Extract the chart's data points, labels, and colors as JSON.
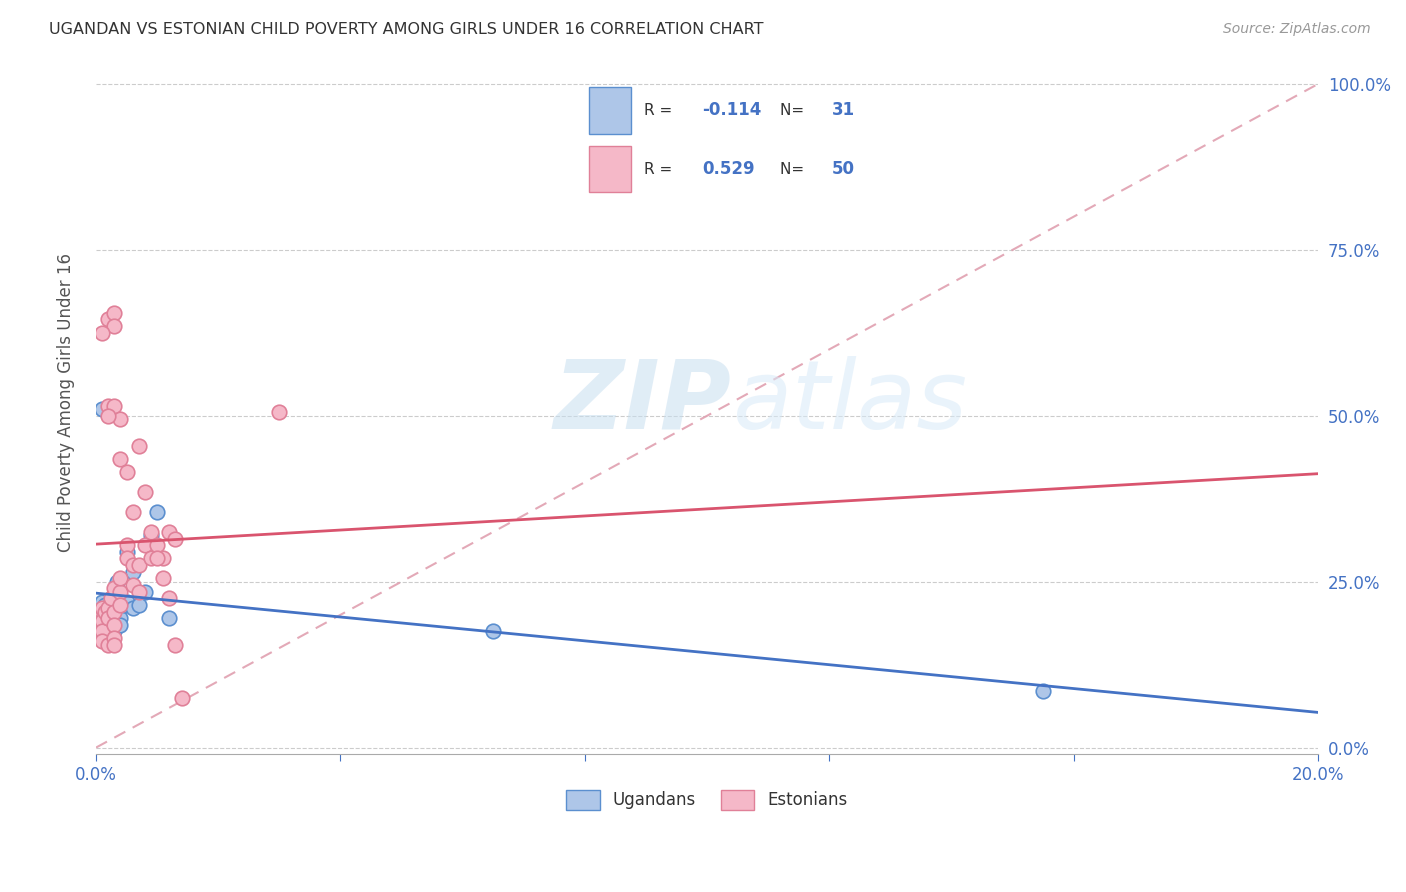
{
  "title": "UGANDAN VS ESTONIAN CHILD POVERTY AMONG GIRLS UNDER 16 CORRELATION CHART",
  "source": "Source: ZipAtlas.com",
  "ylabel": "Child Poverty Among Girls Under 16",
  "ytick_labels": [
    "0.0%",
    "25.0%",
    "50.0%",
    "75.0%",
    "100.0%"
  ],
  "ytick_values": [
    0.0,
    0.25,
    0.5,
    0.75,
    1.0
  ],
  "xtick_labels": [
    "0.0%",
    "",
    "",
    "",
    "",
    "20.0%"
  ],
  "xtick_values": [
    0.0,
    0.04,
    0.08,
    0.12,
    0.16,
    0.2
  ],
  "watermark_zip": "ZIP",
  "watermark_atlas": "atlas",
  "legend_ugandan_r": "-0.114",
  "legend_ugandan_n": "31",
  "legend_estonian_r": "0.529",
  "legend_estonian_n": "50",
  "ugandan_color": "#aec6e8",
  "estonian_color": "#f5b8c8",
  "ugandan_edge_color": "#5b8fcf",
  "estonian_edge_color": "#e08098",
  "ugandan_line_color": "#4472c4",
  "estonian_line_color": "#d9546e",
  "diagonal_color": "#e0a0b0",
  "title_color": "#333333",
  "source_color": "#999999",
  "axis_label_color": "#4472c4",
  "legend_text_color": "#333333",
  "legend_value_color": "#4472c4",
  "background_color": "#ffffff",
  "ugandan_x": [
    0.001,
    0.001,
    0.001,
    0.0015,
    0.001,
    0.002,
    0.002,
    0.002,
    0.002,
    0.0025,
    0.003,
    0.003,
    0.003,
    0.003,
    0.0035,
    0.004,
    0.004,
    0.004,
    0.0045,
    0.005,
    0.005,
    0.006,
    0.006,
    0.007,
    0.008,
    0.009,
    0.01,
    0.012,
    0.065,
    0.155,
    0.001
  ],
  "ugandan_y": [
    0.22,
    0.2,
    0.185,
    0.215,
    0.175,
    0.21,
    0.2,
    0.195,
    0.18,
    0.22,
    0.215,
    0.2,
    0.185,
    0.175,
    0.25,
    0.21,
    0.195,
    0.185,
    0.215,
    0.22,
    0.295,
    0.21,
    0.265,
    0.215,
    0.235,
    0.32,
    0.355,
    0.195,
    0.175,
    0.085,
    0.51
  ],
  "estonian_x": [
    0.001,
    0.001,
    0.001,
    0.001,
    0.001,
    0.0015,
    0.002,
    0.002,
    0.002,
    0.0025,
    0.003,
    0.003,
    0.003,
    0.003,
    0.003,
    0.004,
    0.004,
    0.004,
    0.005,
    0.005,
    0.006,
    0.006,
    0.007,
    0.007,
    0.008,
    0.009,
    0.01,
    0.011,
    0.012,
    0.013,
    0.002,
    0.002,
    0.003,
    0.003,
    0.004,
    0.004,
    0.005,
    0.006,
    0.007,
    0.008,
    0.009,
    0.01,
    0.011,
    0.012,
    0.013,
    0.014,
    0.03,
    0.003,
    0.001,
    0.002
  ],
  "estonian_y": [
    0.205,
    0.19,
    0.21,
    0.175,
    0.16,
    0.205,
    0.21,
    0.195,
    0.155,
    0.225,
    0.24,
    0.205,
    0.185,
    0.165,
    0.155,
    0.235,
    0.255,
    0.215,
    0.305,
    0.285,
    0.275,
    0.245,
    0.235,
    0.275,
    0.305,
    0.285,
    0.305,
    0.285,
    0.325,
    0.315,
    0.515,
    0.645,
    0.655,
    0.515,
    0.495,
    0.435,
    0.415,
    0.355,
    0.455,
    0.385,
    0.325,
    0.285,
    0.255,
    0.225,
    0.155,
    0.075,
    0.505,
    0.635,
    0.625,
    0.5
  ],
  "xlim": [
    0.0,
    0.2
  ],
  "ylim": [
    -0.01,
    1.05
  ],
  "marker_size": 110
}
